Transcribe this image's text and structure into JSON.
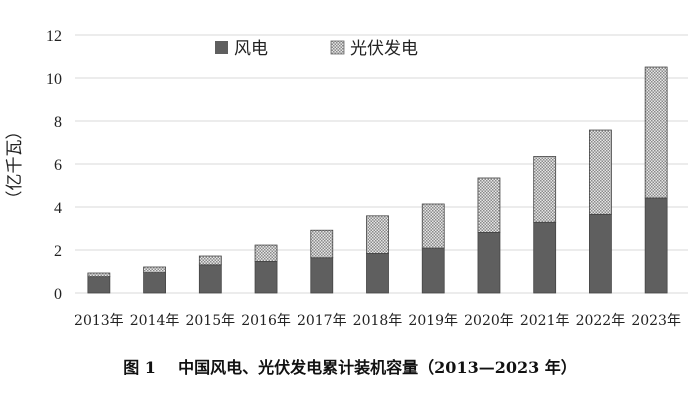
{
  "chart_data": {
    "type": "bar",
    "stacked": true,
    "categories": [
      "2013年",
      "2014年",
      "2015年",
      "2016年",
      "2017年",
      "2018年",
      "2019年",
      "2020年",
      "2021年",
      "2022年",
      "2023年"
    ],
    "series": [
      {
        "name": "风电",
        "values": [
          0.76,
          0.95,
          1.31,
          1.47,
          1.64,
          1.84,
          2.09,
          2.82,
          3.29,
          3.66,
          4.42
        ],
        "color": "#5f5f5f",
        "fill": "solid"
      },
      {
        "name": "光伏发电",
        "values": [
          0.17,
          0.26,
          0.41,
          0.76,
          1.28,
          1.75,
          2.05,
          2.53,
          3.06,
          3.92,
          6.09
        ],
        "color": "#c8c8c8",
        "fill": "dotted"
      }
    ],
    "ylabel": "（亿千瓦）",
    "ylim": [
      0,
      12
    ],
    "yticks": [
      0,
      2,
      4,
      6,
      8,
      10,
      12
    ],
    "grid": true,
    "legend": "top"
  },
  "caption": "图 1    中国风电、光伏发电累计装机容量（2013—2023 年）"
}
